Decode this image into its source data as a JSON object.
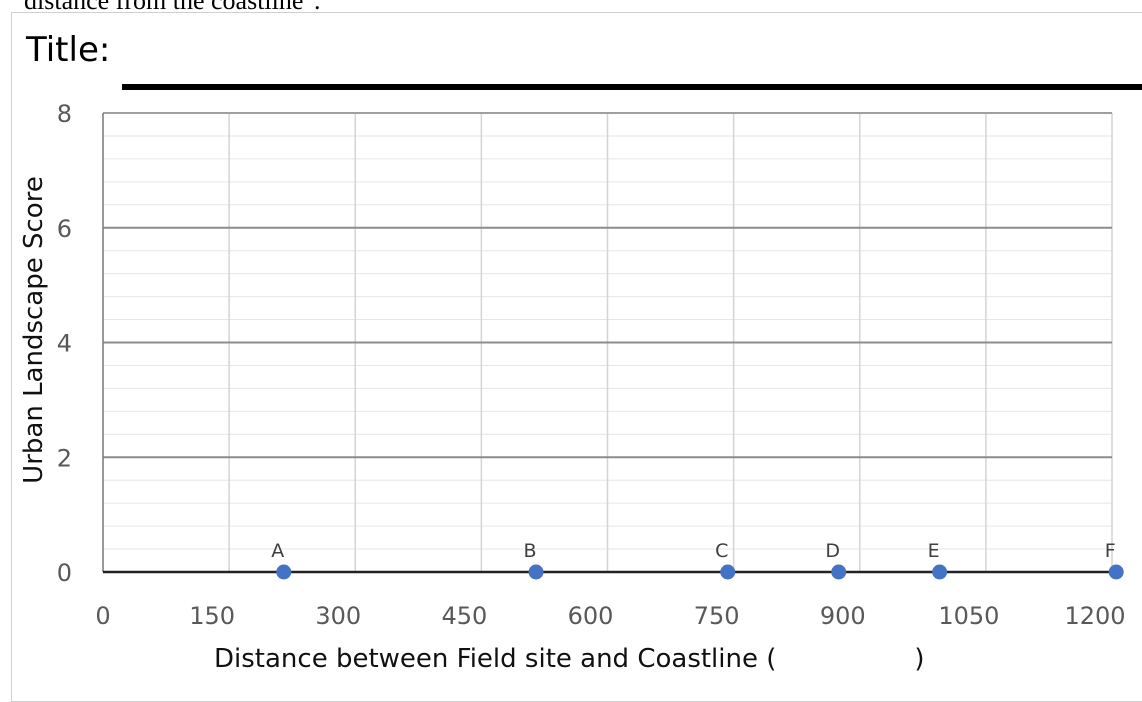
{
  "header": {
    "cutoff_text": "distance from the coastline\".",
    "title_label": "Title:"
  },
  "chart_data": {
    "type": "scatter",
    "title": "",
    "xlabel": "Distance between Field site and Coastline (",
    "xlabel_close": ")",
    "ylabel": "Urban Landscape Score",
    "xlim": [
      0,
      1200
    ],
    "ylim": [
      0,
      8
    ],
    "x_ticks": [
      0,
      150,
      300,
      450,
      600,
      750,
      900,
      1050,
      1200
    ],
    "x_tick_labels": [
      "0",
      "150",
      "300",
      "450",
      "600",
      "750",
      "900",
      "1050",
      "1200"
    ],
    "y_ticks": [
      0,
      2,
      4,
      6,
      8
    ],
    "y_tick_labels": [
      "0",
      "2",
      "4",
      "6",
      "8"
    ],
    "grid": true,
    "point_color": "#4472c4",
    "points": [
      {
        "label": "A",
        "x": 215,
        "y": 0
      },
      {
        "label": "B",
        "x": 515,
        "y": 0
      },
      {
        "label": "C",
        "x": 743,
        "y": 0
      },
      {
        "label": "D",
        "x": 875,
        "y": 0
      },
      {
        "label": "E",
        "x": 995,
        "y": 0
      },
      {
        "label": "F",
        "x": 1205,
        "y": 0
      }
    ]
  }
}
